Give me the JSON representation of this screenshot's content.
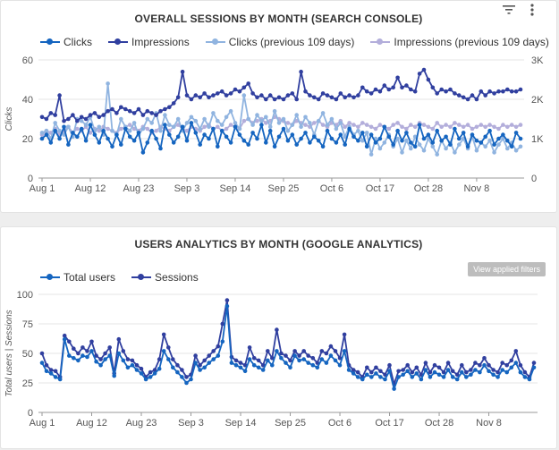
{
  "colors": {
    "clicks": "#1565c0",
    "impressions": "#303f9f",
    "clicks_prev": "#90b4e0",
    "impressions_prev": "#b3aedb",
    "total_users": "#1565c0",
    "sessions": "#303f9f"
  },
  "header_icons": [
    "filter-icon",
    "more-vert-icon"
  ],
  "view_filters_label": "View applied filters",
  "chart_data": [
    {
      "type": "line",
      "title": "OVERALL SESSIONS BY MONTH (SEARCH CONSOLE)",
      "ylabel": "Clicks",
      "ylim": [
        0,
        60
      ],
      "y2lim": [
        0,
        3000
      ],
      "yticks": [
        "0",
        "20",
        "40",
        "60"
      ],
      "y2ticks": [
        "0",
        "1K",
        "2K",
        "3K"
      ],
      "xticks": [
        "Aug 1",
        "Aug 12",
        "Aug 23",
        "Sep 3",
        "Sep 14",
        "Sep 25",
        "Oct 6",
        "Oct 17",
        "Oct 28",
        "Nov 8"
      ],
      "grid": true,
      "legend": "top",
      "series": [
        {
          "name": "Clicks",
          "axis": "left",
          "values": [
            20,
            22,
            18,
            24,
            20,
            26,
            17,
            23,
            21,
            25,
            19,
            27,
            22,
            18,
            24,
            20,
            16,
            22,
            17,
            25,
            21,
            19,
            23,
            13,
            18,
            24,
            20,
            15,
            27,
            22,
            18,
            21,
            26,
            19,
            28,
            23,
            17,
            22,
            20,
            25,
            16,
            24,
            21,
            18,
            26,
            22,
            19,
            17,
            23,
            20,
            27,
            18,
            24,
            16,
            21,
            25,
            19,
            22,
            17,
            20,
            23,
            18,
            21,
            19,
            16,
            24,
            20,
            18,
            22,
            17,
            25,
            21,
            19,
            23,
            16,
            22,
            18,
            20,
            26,
            21,
            17,
            24,
            19,
            23,
            18,
            16,
            27,
            20,
            22,
            18,
            24,
            19,
            21,
            17,
            25,
            20,
            23,
            16,
            22,
            19,
            18,
            21,
            24,
            17,
            20,
            22,
            19,
            16,
            23,
            20
          ]
        },
        {
          "name": "Impressions",
          "axis": "right",
          "values": [
            1550,
            1500,
            1650,
            1600,
            2100,
            1450,
            1500,
            1600,
            1450,
            1550,
            1500,
            1600,
            1650,
            1550,
            1600,
            1700,
            1750,
            1650,
            1800,
            1750,
            1700,
            1650,
            1750,
            1600,
            1700,
            1650,
            1600,
            1700,
            1750,
            1800,
            1900,
            2050,
            2700,
            2100,
            2000,
            2100,
            2050,
            2150,
            2050,
            2100,
            2150,
            2200,
            2100,
            2150,
            2250,
            2200,
            2300,
            2400,
            2150,
            2050,
            2100,
            2000,
            2100,
            2000,
            2050,
            2000,
            2100,
            2150,
            2000,
            2700,
            2200,
            2100,
            2050,
            2000,
            2150,
            2100,
            2050,
            2000,
            2150,
            2050,
            2100,
            2050,
            2100,
            2300,
            2200,
            2150,
            2250,
            2200,
            2350,
            2250,
            2300,
            2550,
            2300,
            2350,
            2250,
            2200,
            2650,
            2750,
            2500,
            2300,
            2150,
            2250,
            2200,
            2250,
            2150,
            2100,
            2050,
            2000,
            2100,
            2000,
            2200,
            2100,
            2200,
            2150,
            2200,
            2200,
            2250,
            2200,
            2200,
            2250
          ]
        },
        {
          "name": "Clicks (previous 109 days)",
          "axis": "left",
          "values": [
            23,
            24,
            20,
            28,
            24,
            22,
            26,
            21,
            30,
            29,
            27,
            31,
            24,
            26,
            22,
            48,
            24,
            22,
            30,
            26,
            24,
            28,
            22,
            25,
            30,
            28,
            33,
            24,
            32,
            27,
            26,
            30,
            24,
            28,
            31,
            29,
            25,
            30,
            26,
            33,
            29,
            27,
            31,
            34,
            28,
            25,
            42,
            30,
            27,
            32,
            29,
            31,
            26,
            34,
            28,
            30,
            24,
            27,
            32,
            26,
            31,
            28,
            22,
            29,
            33,
            27,
            30,
            25,
            28,
            21,
            26,
            22,
            24,
            19,
            23,
            12,
            20,
            15,
            18,
            22,
            16,
            20,
            13,
            19,
            15,
            21,
            17,
            14,
            20,
            16,
            12,
            19,
            15,
            18,
            13,
            17,
            20,
            15,
            21,
            14,
            18,
            16,
            19,
            13,
            17,
            20,
            15,
            18,
            14,
            16
          ]
        },
        {
          "name": "Impressions (previous 109 days)",
          "axis": "right",
          "values": [
            1100,
            1200,
            1150,
            1250,
            1100,
            1200,
            1300,
            1150,
            1250,
            1200,
            1300,
            1150,
            1250,
            1200,
            1300,
            1250,
            1200,
            1150,
            1250,
            1300,
            1350,
            1250,
            1200,
            1300,
            1250,
            1150,
            1200,
            1300,
            1250,
            1200,
            1300,
            1350,
            1250,
            1200,
            1300,
            1250,
            1200,
            1300,
            1350,
            1250,
            1300,
            1200,
            1250,
            1350,
            1300,
            1250,
            1450,
            1500,
            1400,
            1450,
            1500,
            1400,
            1450,
            1550,
            1500,
            1450,
            1400,
            1350,
            1450,
            1400,
            1350,
            1300,
            1400,
            1450,
            1350,
            1300,
            1400,
            1350,
            1450,
            1300,
            1400,
            1350,
            1300,
            1400,
            1350,
            1300,
            1250,
            1350,
            1300,
            1250,
            1350,
            1400,
            1300,
            1250,
            1350,
            1300,
            1400,
            1350,
            1300,
            1250,
            1400,
            1300,
            1350,
            1300,
            1400,
            1350,
            1300,
            1350,
            1250,
            1300,
            1350,
            1300,
            1350,
            1300,
            1250,
            1350,
            1300,
            1350,
            1300,
            1350
          ]
        }
      ]
    },
    {
      "type": "line",
      "title": "USERS ANALYTICS BY MONTH (GOOGLE ANALYTICS)",
      "ylabel": "Total users | Sessions",
      "ylim": [
        0,
        100
      ],
      "yticks": [
        "0",
        "25",
        "50",
        "75",
        "100"
      ],
      "xticks": [
        "Aug 1",
        "Aug 12",
        "Aug 23",
        "Sep 3",
        "Sep 14",
        "Sep 25",
        "Oct 6",
        "Oct 17",
        "Oct 28",
        "Nov 8"
      ],
      "grid": true,
      "legend": "top",
      "series": [
        {
          "name": "Total users",
          "values": [
            42,
            35,
            33,
            30,
            28,
            62,
            48,
            46,
            44,
            48,
            47,
            52,
            43,
            40,
            45,
            48,
            31,
            50,
            44,
            38,
            40,
            36,
            33,
            28,
            30,
            33,
            37,
            52,
            45,
            38,
            34,
            30,
            25,
            28,
            42,
            36,
            38,
            42,
            45,
            48,
            60,
            90,
            42,
            40,
            38,
            35,
            45,
            40,
            38,
            36,
            44,
            40,
            52,
            46,
            42,
            38,
            48,
            44,
            45,
            42,
            40,
            38,
            45,
            42,
            48,
            44,
            40,
            52,
            36,
            33,
            30,
            28,
            32,
            30,
            33,
            30,
            28,
            35,
            20,
            30,
            32,
            35,
            30,
            33,
            28,
            36,
            30,
            34,
            32,
            30,
            36,
            30,
            28,
            34,
            30,
            32,
            36,
            34,
            40,
            35,
            32,
            30,
            36,
            34,
            38,
            42,
            34,
            30,
            28,
            38
          ]
        },
        {
          "name": "Sessions",
          "values": [
            50,
            40,
            36,
            35,
            30,
            65,
            60,
            54,
            50,
            55,
            52,
            60,
            48,
            45,
            50,
            55,
            33,
            62,
            52,
            45,
            44,
            40,
            37,
            30,
            34,
            36,
            45,
            66,
            55,
            45,
            40,
            36,
            30,
            32,
            48,
            40,
            44,
            48,
            52,
            56,
            75,
            95,
            47,
            44,
            42,
            40,
            55,
            46,
            44,
            40,
            52,
            46,
            70,
            50,
            48,
            44,
            52,
            48,
            52,
            48,
            46,
            42,
            52,
            50,
            56,
            52,
            46,
            66,
            40,
            36,
            34,
            30,
            38,
            34,
            38,
            35,
            32,
            40,
            24,
            35,
            36,
            40,
            34,
            38,
            32,
            42,
            34,
            40,
            38,
            34,
            42,
            35,
            32,
            40,
            34,
            36,
            42,
            40,
            46,
            40,
            36,
            34,
            42,
            40,
            44,
            52,
            40,
            34,
            30,
            42
          ]
        }
      ]
    }
  ]
}
